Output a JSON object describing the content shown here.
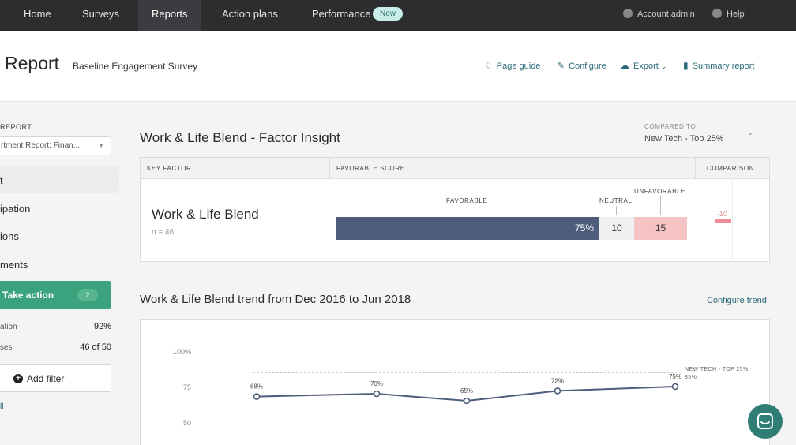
{
  "nav": {
    "items": [
      "Home",
      "Surveys",
      "Reports",
      "Action plans",
      "Performance"
    ],
    "badge": "New",
    "account": "Account admin",
    "help": "Help"
  },
  "header": {
    "title": "Report",
    "subtitle": "Baseline Engagement Survey",
    "links": [
      "Page guide",
      "Configure",
      "Export",
      "Summary report"
    ]
  },
  "sidebar": {
    "report_label": "REPORT",
    "report_select": "rtment Report: Finan...",
    "items": [
      "t",
      "ipation",
      "ions",
      "ments"
    ],
    "take_action": "Take action",
    "take_action_count": "2",
    "stats": [
      {
        "label": "ation",
        "value": "92%"
      },
      {
        "label": "ses",
        "value": "46 of 50"
      }
    ],
    "add_filter": "Add filter",
    "link": "ll"
  },
  "insight": {
    "title": "Work & Life Blend - Factor Insight",
    "compared_label": "COMPARED TO",
    "compared_value": "New Tech - Top 25%",
    "columns": [
      "KEY FACTOR",
      "FAVORABLE SCORE",
      "COMPARISON"
    ],
    "factor": "Work & Life Blend",
    "n": "n = 46",
    "labels": {
      "favorable": "FAVORABLE",
      "neutral": "NEUTRAL",
      "unfavorable": "UNFAVORABLE"
    },
    "favorable": "75%",
    "neutral": "10",
    "unfavorable": "15",
    "comparison": "-10"
  },
  "trend": {
    "title": "Work & Life Blend trend from Dec 2016 to Jun 2018",
    "configure": "Configure trend"
  },
  "colors": {
    "accent": "#2a6a78",
    "favorable": "#4e5d7c",
    "neutral": "#eef0f2",
    "unfavorable": "#f6c3c5",
    "take_action": "#3aa37d"
  },
  "chart_data": {
    "type": "line",
    "y_ticks": [
      "100%",
      "75",
      "50"
    ],
    "ylim": [
      50,
      100
    ],
    "values": [
      68,
      70,
      65,
      72,
      75
    ],
    "point_labels": [
      "68%",
      "70%",
      "65%",
      "72%",
      "75%"
    ],
    "benchmark": 85,
    "benchmark_label": "NEW TECH - TOP 25%:",
    "benchmark_value": "85%"
  }
}
